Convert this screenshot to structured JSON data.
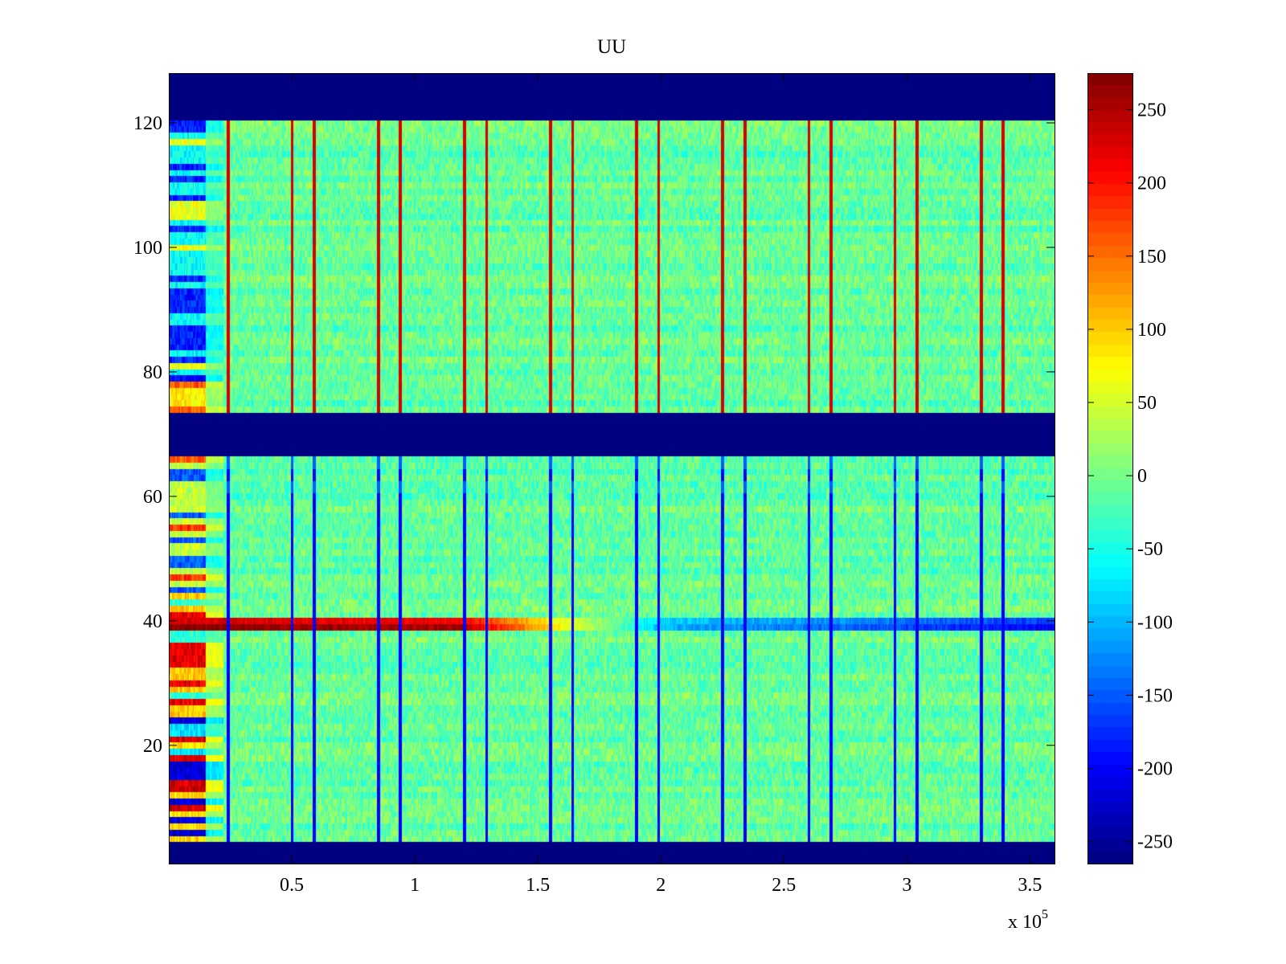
{
  "chart_data": {
    "type": "heatmap",
    "title": "UU",
    "xlabel": "",
    "ylabel": "",
    "x_multiplier_label": "x 10",
    "x_multiplier_exponent": "5",
    "xlim": [
      0,
      3.6
    ],
    "ylim": [
      1,
      128
    ],
    "xticks": [
      0.5,
      1,
      1.5,
      2,
      2.5,
      3,
      3.5
    ],
    "xtick_labels": [
      "0.5",
      "1",
      "1.5",
      "2",
      "2.5",
      "3",
      "3.5"
    ],
    "yticks": [
      20,
      40,
      60,
      80,
      100,
      120
    ],
    "ytick_labels": [
      "20",
      "40",
      "60",
      "80",
      "100",
      "120"
    ],
    "colormap": "jet",
    "clim": [
      -265,
      275
    ],
    "colorbar_ticks": [
      250,
      200,
      150,
      100,
      50,
      0,
      -50,
      -100,
      -150,
      -200,
      -250
    ],
    "colorbar_tick_labels": [
      "250",
      "200",
      "150",
      "100",
      "50",
      "0",
      "-50",
      "-100",
      "-150",
      "-200",
      "-250"
    ],
    "masked_row_bands": [
      [
        1,
        4
      ],
      [
        67,
        73
      ],
      [
        121,
        128
      ]
    ],
    "masked_value": -265,
    "background_value": -10,
    "periodic_column_pairs_x": [
      0.24,
      0.5,
      0.59,
      0.85,
      0.94,
      1.2,
      1.29,
      1.55,
      1.64,
      1.9,
      1.99,
      2.25,
      2.34,
      2.6,
      2.69,
      2.95,
      3.04,
      3.3,
      3.39
    ],
    "column_polarity": "red in upper rows, blue in lower rows",
    "strong_row": 39,
    "strong_row_profile": [
      {
        "x": 0.0,
        "value": 270
      },
      {
        "x": 1.2,
        "value": 250
      },
      {
        "x": 1.55,
        "value": 90
      },
      {
        "x": 1.8,
        "value": 0
      },
      {
        "x": 2.0,
        "value": -100
      },
      {
        "x": 3.6,
        "value": -200
      }
    ]
  }
}
